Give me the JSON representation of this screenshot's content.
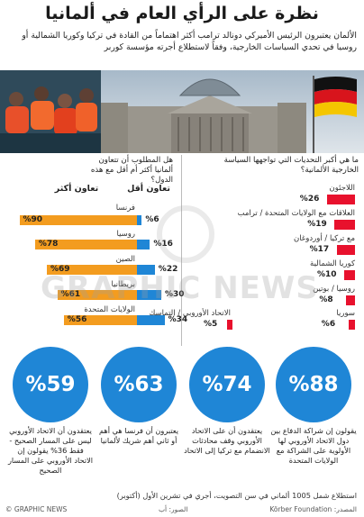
{
  "title": "نظرة على الرأي العام في ألمانيا",
  "intro": "الألمان يعتبرون الرئيس الأميركي دونالد ترامب أكثر اهتماماً من القادة في تركيا وكوريا الشمالية أو روسيا في تحدي السياسات الخارجية، وفقاً لاستطلاع أجرته مؤسسة كوربر",
  "watermark": "GRAPHIC NEWS",
  "colors": {
    "accent_red": "#e8112d",
    "accent_orange": "#f39c1f",
    "accent_blue": "#1f86d6"
  },
  "chart_data": [
    {
      "type": "bar",
      "title": "ما هي أكبر التحديات التي تواجهها السياسة الخارجية الألمانية؟",
      "categories": [
        "اللاجئون",
        "العلاقات مع الولايات المتحدة / ترامب",
        "مع تركيا / أوردوغان",
        "كوريا الشمالية",
        "روسيا / بوتين",
        "سوريا"
      ],
      "values": [
        26,
        19,
        17,
        10,
        8,
        6
      ],
      "value_labels": [
        "%26",
        "%19",
        "%17",
        "%10",
        "%8",
        "%6"
      ],
      "color": "#e8112d"
    },
    {
      "type": "bar",
      "title": "هل المطلوب أن تتعاون ألمانيا أكثر أم أقل مع هذه الدول؟",
      "categories": [
        "فرنسا",
        "روسيا",
        "الصين",
        "بريطانيا",
        "الولايات المتحدة"
      ],
      "series": [
        {
          "name": "تعاون أكثر",
          "values": [
            90,
            78,
            69,
            61,
            56
          ],
          "value_labels": [
            "%90",
            "%78",
            "%69",
            "%61",
            "%56"
          ],
          "color": "#f39c1f"
        },
        {
          "name": "تعاون أقل",
          "values": [
            6,
            16,
            22,
            30,
            34
          ],
          "value_labels": [
            "%6",
            "%16",
            "%22",
            "%30",
            "%34"
          ],
          "color": "#1f86d6"
        }
      ]
    },
    {
      "type": "bar",
      "categories": [
        "الاتحاد الأوروبي / التماسك"
      ],
      "values": [
        5
      ],
      "value_labels": [
        "%5"
      ],
      "color": "#e8112d"
    }
  ],
  "stats": [
    {
      "value": "%88",
      "caption": "يقولون إن شراكة الدفاع بين دول الاتحاد الأوروبي لها الأولوية على الشراكة مع الولايات المتحدة"
    },
    {
      "value": "%74",
      "caption": "يعتقدون أن على الاتحاد الأوروبي وقف محادثات الانضمام مع تركيا إلى الاتحاد"
    },
    {
      "value": "%63",
      "caption": "يعتبرون أن فرنسا هي أهم أو ثاني أهم شريك لألمانيا"
    },
    {
      "value": "%59",
      "caption": "يعتقدون أن الاتحاد الأوروبي ليس على المسار الصحيح - فقط 36% يقولون إن الاتحاد الأوروبي على المسار الصحيح"
    }
  ],
  "footnote": "استطلاع شمل 1005 ألماني في سن التصويت، أجري في تشرين الأول (أكتوبر)",
  "source": "المصدر: Körber Foundation",
  "photo_credit": "الصور: أب",
  "copyright": "© GRAPHIC NEWS"
}
